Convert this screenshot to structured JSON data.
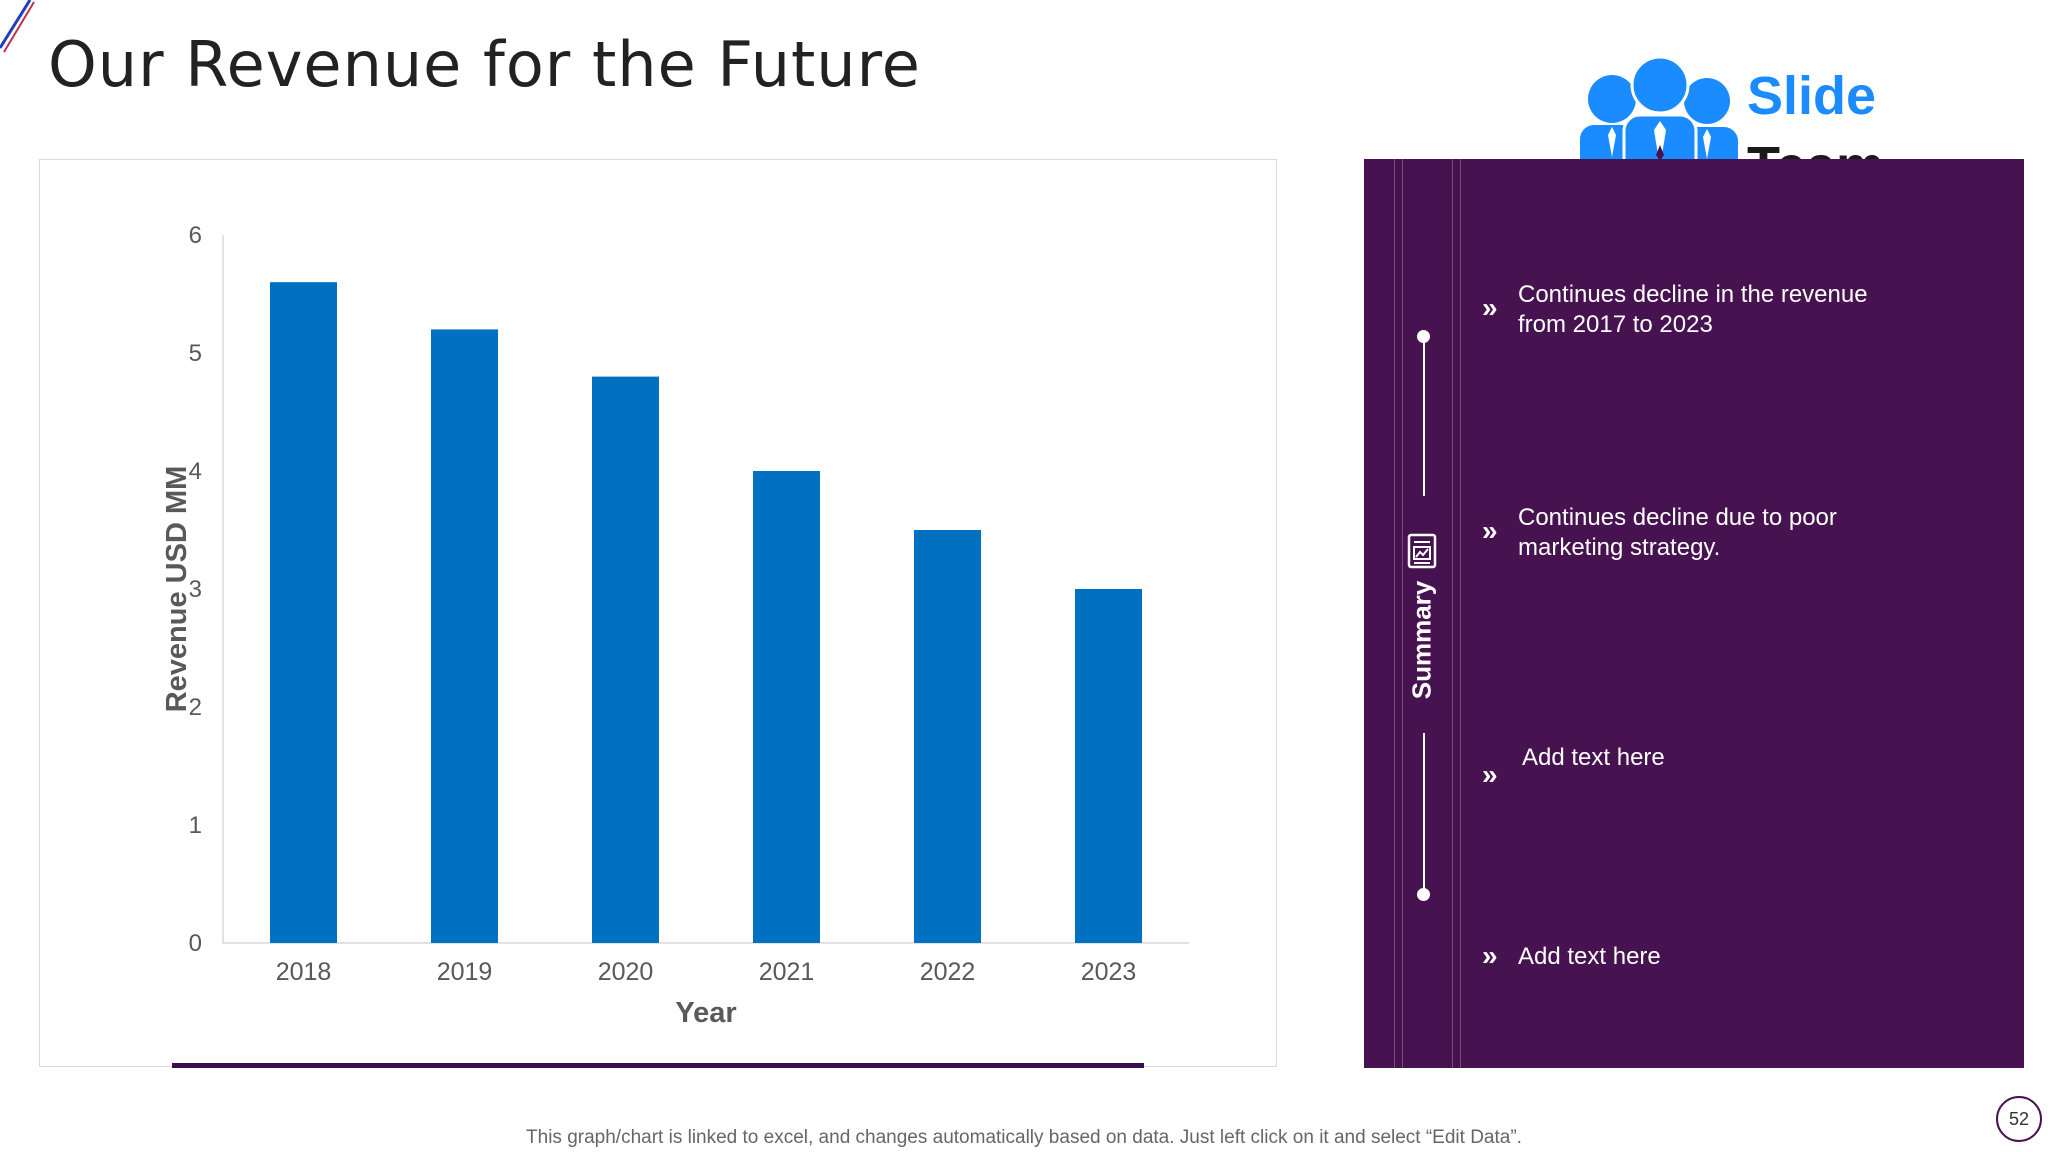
{
  "slide": {
    "title": "Our Revenue for the Future",
    "footnote": "This graph/chart is linked to excel, and changes automatically based on data. Just left click on it and select “Edit Data”.",
    "page_number": "52"
  },
  "logo": {
    "line1": "Slide",
    "line2": "Team"
  },
  "summary": {
    "label": "Summary",
    "bullets": [
      "Continues decline in the revenue from 2017 to 2023",
      "Continues decline due to poor marketing strategy.",
      "Add text here",
      "Add text here"
    ]
  },
  "colors": {
    "bar": "#0070c0",
    "panel": "#46124f",
    "accent_line": "#3b0f4f"
  },
  "chart_data": {
    "type": "bar",
    "categories": [
      "2018",
      "2019",
      "2020",
      "2021",
      "2022",
      "2023"
    ],
    "values": [
      5.6,
      5.2,
      4.8,
      4.0,
      3.5,
      3.0
    ],
    "title": "",
    "xlabel": "Year",
    "ylabel": "Revenue USD MM",
    "ylim": [
      0,
      6
    ],
    "yticks": [
      "0",
      "1",
      "2",
      "3",
      "4",
      "5",
      "6"
    ],
    "grid": false
  }
}
